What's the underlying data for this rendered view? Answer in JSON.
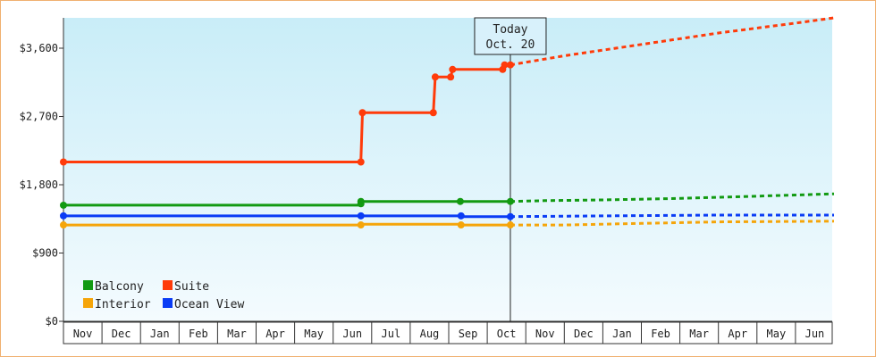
{
  "colors": {
    "balcony": "#129a12",
    "suite": "#ff3b0a",
    "interior": "#f5a50a",
    "ocean_view": "#0a3cf5",
    "plot_top": "#c9edf8",
    "plot_bottom": "#f4fbfe"
  },
  "chart_data": {
    "type": "line",
    "title": "",
    "xlabel": "",
    "ylabel": "",
    "x_unit": "month index (0 = Nov of first year)",
    "xlim": [
      0,
      20
    ],
    "ylim": [
      0,
      4000
    ],
    "y_ticks": [
      {
        "value": 0,
        "label": "$0"
      },
      {
        "value": 900,
        "label": "$900"
      },
      {
        "value": 1800,
        "label": "$1,800"
      },
      {
        "value": 2700,
        "label": "$2,700"
      },
      {
        "value": 3600,
        "label": "$3,600"
      }
    ],
    "categories": [
      "Nov",
      "Dec",
      "Jan",
      "Feb",
      "Mar",
      "Apr",
      "May",
      "Jun",
      "Jul",
      "Aug",
      "Sep",
      "Oct",
      "Nov",
      "Dec",
      "Jan",
      "Feb",
      "Mar",
      "Apr",
      "May",
      "Jun"
    ],
    "grid": false,
    "legend_position": "bottom-left",
    "today": {
      "line1": "Today",
      "line2": "Oct. 20",
      "x": 11.6
    },
    "series": [
      {
        "name": "Balcony",
        "key": "balcony",
        "history": [
          [
            0,
            1530
          ],
          [
            7.7,
            1530
          ],
          [
            7.72,
            1580
          ],
          [
            10.3,
            1580
          ],
          [
            11.6,
            1580
          ]
        ],
        "markers": [
          [
            0,
            1530
          ],
          [
            7.72,
            1550
          ],
          [
            7.72,
            1580
          ],
          [
            10.3,
            1580
          ],
          [
            11.6,
            1580
          ]
        ],
        "forecast": [
          [
            11.6,
            1580
          ],
          [
            12.5,
            1590
          ],
          [
            14,
            1600
          ],
          [
            16,
            1620
          ],
          [
            18,
            1650
          ],
          [
            20,
            1680
          ]
        ]
      },
      {
        "name": "Suite",
        "key": "suite",
        "history": [
          [
            0,
            2100
          ],
          [
            7.72,
            2100
          ],
          [
            7.76,
            2750
          ],
          [
            9.6,
            2750
          ],
          [
            9.65,
            3220
          ],
          [
            10.05,
            3220
          ],
          [
            10.1,
            3320
          ],
          [
            11.4,
            3320
          ],
          [
            11.45,
            3380
          ],
          [
            11.6,
            3380
          ]
        ],
        "markers": [
          [
            0,
            2100
          ],
          [
            7.72,
            2100
          ],
          [
            7.76,
            2750
          ],
          [
            9.6,
            2750
          ],
          [
            9.65,
            3220
          ],
          [
            10.05,
            3220
          ],
          [
            10.1,
            3320
          ],
          [
            11.4,
            3320
          ],
          [
            11.45,
            3380
          ],
          [
            11.6,
            3380
          ]
        ],
        "forecast": [
          [
            11.6,
            3380
          ],
          [
            13,
            3500
          ],
          [
            15,
            3650
          ],
          [
            17,
            3800
          ],
          [
            19,
            3930
          ],
          [
            20,
            4000
          ]
        ]
      },
      {
        "name": "Interior",
        "key": "interior",
        "history": [
          [
            0,
            1270
          ],
          [
            7.72,
            1270
          ],
          [
            7.75,
            1280
          ],
          [
            10.3,
            1280
          ],
          [
            10.32,
            1270
          ],
          [
            11.6,
            1270
          ]
        ],
        "markers": [
          [
            0,
            1270
          ],
          [
            7.72,
            1270
          ],
          [
            10.32,
            1270
          ],
          [
            11.6,
            1270
          ]
        ],
        "forecast": [
          [
            11.6,
            1270
          ],
          [
            13,
            1270
          ],
          [
            15,
            1290
          ],
          [
            17,
            1310
          ],
          [
            20,
            1320
          ]
        ]
      },
      {
        "name": "Ocean View",
        "key": "ocean_view",
        "history": [
          [
            0,
            1390
          ],
          [
            7.72,
            1390
          ],
          [
            10.3,
            1390
          ],
          [
            10.32,
            1380
          ],
          [
            11.6,
            1380
          ]
        ],
        "markers": [
          [
            0,
            1390
          ],
          [
            7.72,
            1390
          ],
          [
            10.32,
            1390
          ],
          [
            11.6,
            1380
          ]
        ],
        "forecast": [
          [
            11.6,
            1380
          ],
          [
            14,
            1390
          ],
          [
            17,
            1400
          ],
          [
            20,
            1400
          ]
        ]
      }
    ]
  }
}
